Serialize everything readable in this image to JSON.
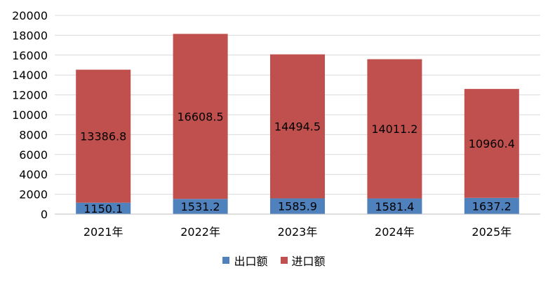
{
  "chart_data": {
    "type": "bar",
    "stacked": true,
    "categories": [
      "2021年",
      "2022年",
      "2023年",
      "2024年",
      "2025年"
    ],
    "series": [
      {
        "name": "出口额",
        "color": "#4f81bd",
        "values": [
          1150.1,
          1531.2,
          1585.9,
          1581.4,
          1637.2
        ],
        "labels": [
          "1150.1",
          "1531.2",
          "1585.9",
          "1581.4",
          "1637.2"
        ]
      },
      {
        "name": "进口额",
        "color": "#c0504d",
        "values": [
          13386.8,
          16608.5,
          14494.5,
          14011.2,
          10960.4
        ],
        "labels": [
          "13386.8",
          "16608.5",
          "14494.5",
          "14011.2",
          "10960.4"
        ]
      }
    ],
    "yticks": [
      0,
      2000,
      4000,
      6000,
      8000,
      10000,
      12000,
      14000,
      16000,
      18000,
      20000
    ],
    "ylim": [
      0,
      20000
    ],
    "grid": true,
    "legend_position": "bottom"
  }
}
